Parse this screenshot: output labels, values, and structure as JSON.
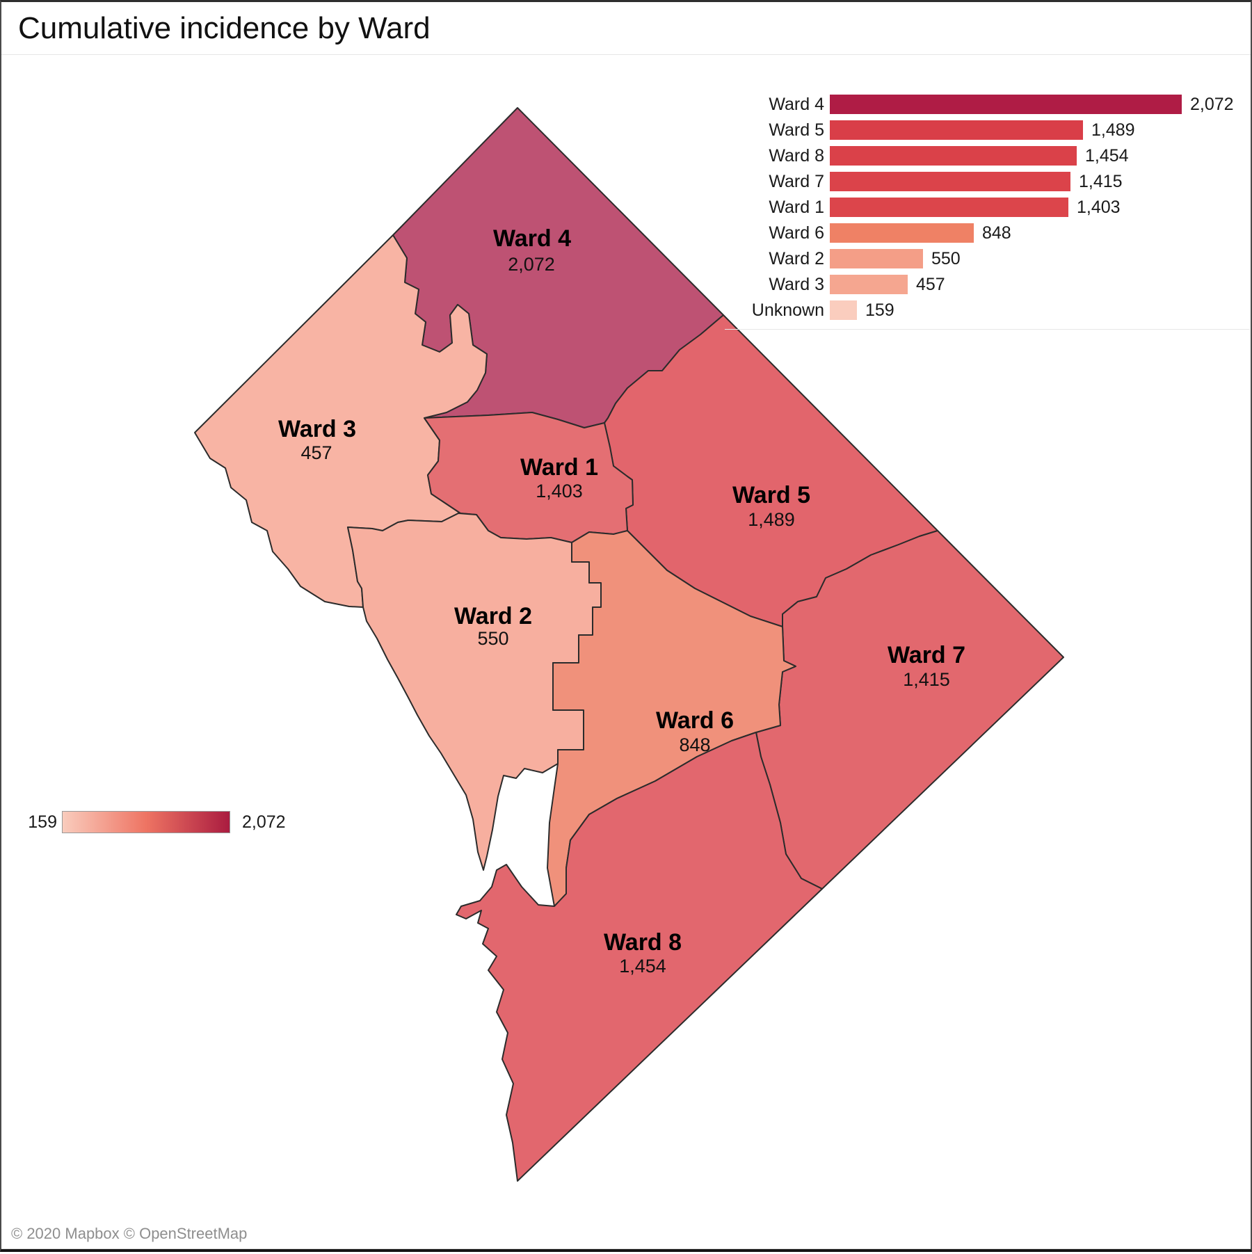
{
  "title": "Cumulative incidence by Ward",
  "attribution": "© 2020 Mapbox © OpenStreetMap",
  "colors": {
    "scale_min": "#F9CCBD",
    "scale_mid": "#EE7463",
    "scale_max": "#AA1C40",
    "water": "#FFFFFF",
    "ward_border": "#2B2B2B"
  },
  "bar_legend": {
    "rows": [
      {
        "label": "Ward 4",
        "value": 2072,
        "value_label": "2,072",
        "color": "#AF1C45"
      },
      {
        "label": "Ward 5",
        "value": 1489,
        "value_label": "1,489",
        "color": "#D93E48"
      },
      {
        "label": "Ward 8",
        "value": 1454,
        "value_label": "1,454",
        "color": "#DA4149"
      },
      {
        "label": "Ward 7",
        "value": 1415,
        "value_label": "1,415",
        "color": "#DB434A"
      },
      {
        "label": "Ward 1",
        "value": 1403,
        "value_label": "1,403",
        "color": "#DC454B"
      },
      {
        "label": "Ward 6",
        "value": 848,
        "value_label": "848",
        "color": "#EF8165"
      },
      {
        "label": "Ward 2",
        "value": 550,
        "value_label": "550",
        "color": "#F49E87"
      },
      {
        "label": "Ward 3",
        "value": 457,
        "value_label": "457",
        "color": "#F5A690"
      },
      {
        "label": "Unknown",
        "value": 159,
        "value_label": "159",
        "color": "#FACDBE"
      }
    ]
  },
  "gradient_legend": {
    "min_label": "159",
    "max_label": "2,072"
  },
  "map": {
    "wards": [
      {
        "name": "Ward 1",
        "value": 1403,
        "value_label": "1,403",
        "fill": "#E46F73"
      },
      {
        "name": "Ward 2",
        "value": 550,
        "value_label": "550",
        "fill": "#F7AF9F"
      },
      {
        "name": "Ward 3",
        "value": 457,
        "value_label": "457",
        "fill": "#F8B4A4"
      },
      {
        "name": "Ward 4",
        "value": 2072,
        "value_label": "2,072",
        "fill": "#BE5273"
      },
      {
        "name": "Ward 5",
        "value": 1489,
        "value_label": "1,489",
        "fill": "#E2656C"
      },
      {
        "name": "Ward 6",
        "value": 848,
        "value_label": "848",
        "fill": "#F0917B"
      },
      {
        "name": "Ward 7",
        "value": 1415,
        "value_label": "1,415",
        "fill": "#E2686E"
      },
      {
        "name": "Ward 8",
        "value": 1454,
        "value_label": "1,454",
        "fill": "#E2676E"
      }
    ]
  },
  "chart_data": {
    "type": "bar",
    "orientation": "horizontal",
    "title": "Cumulative incidence by Ward",
    "categories": [
      "Ward 4",
      "Ward 5",
      "Ward 8",
      "Ward 7",
      "Ward 1",
      "Ward 6",
      "Ward 2",
      "Ward 3",
      "Unknown"
    ],
    "values": [
      2072,
      1489,
      1454,
      1415,
      1403,
      848,
      550,
      457,
      159
    ],
    "xlabel": "",
    "ylabel": "",
    "xlim": [
      0,
      2072
    ],
    "legend_position": "top-right",
    "color_scale": {
      "min": 159,
      "max": 2072,
      "min_color": "#FACDBE",
      "max_color": "#AF1C45"
    }
  }
}
